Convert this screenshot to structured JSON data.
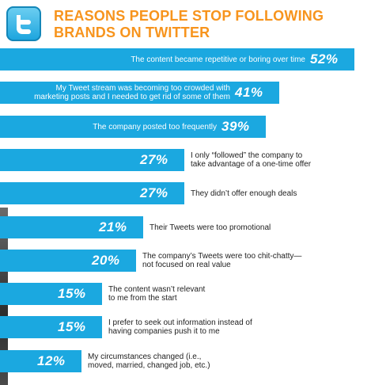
{
  "header": {
    "logo_icon": "twitter-bird-icon",
    "title_line1": "REASONS PEOPLE STOP FOLLOWING",
    "title_line2": "BRANDS ON TWITTER"
  },
  "colors": {
    "bar": "#1ba8e0",
    "title": "#f7941d"
  },
  "chart_data": {
    "type": "bar",
    "orientation": "horizontal",
    "title": "REASONS PEOPLE STOP FOLLOWING BRANDS ON TWITTER",
    "unit": "%",
    "xlim": [
      0,
      52
    ],
    "categories": [
      [
        "The content became repetitive or boring over time"
      ],
      [
        "My Tweet stream was becoming too crowded with",
        "marketing posts and I needed to get rid of some of them"
      ],
      [
        "The company posted too frequently"
      ],
      [
        "I only “followed” the company to",
        "take advantage of a one-time offer"
      ],
      [
        "They didn’t offer enough deals"
      ],
      [
        "Their Tweets were too promotional"
      ],
      [
        "The company’s Tweets were too chit-chatty—",
        "not focused on real value"
      ],
      [
        "The content wasn’t relevant",
        "to me from the start"
      ],
      [
        "I prefer to seek out information instead of",
        "having companies push it to me"
      ],
      [
        "My circumstances changed (i.e.,",
        "moved, married, changed job, etc.)"
      ]
    ],
    "values": [
      52,
      41,
      39,
      27,
      27,
      21,
      20,
      15,
      15,
      12
    ],
    "value_labels": [
      "52%",
      "41%",
      "39%",
      "27%",
      "27%",
      "21%",
      "20%",
      "15%",
      "15%",
      "12%"
    ],
    "label_position": [
      "inside",
      "inside",
      "inside",
      "outside",
      "outside",
      "outside",
      "outside",
      "outside",
      "outside",
      "outside"
    ]
  }
}
